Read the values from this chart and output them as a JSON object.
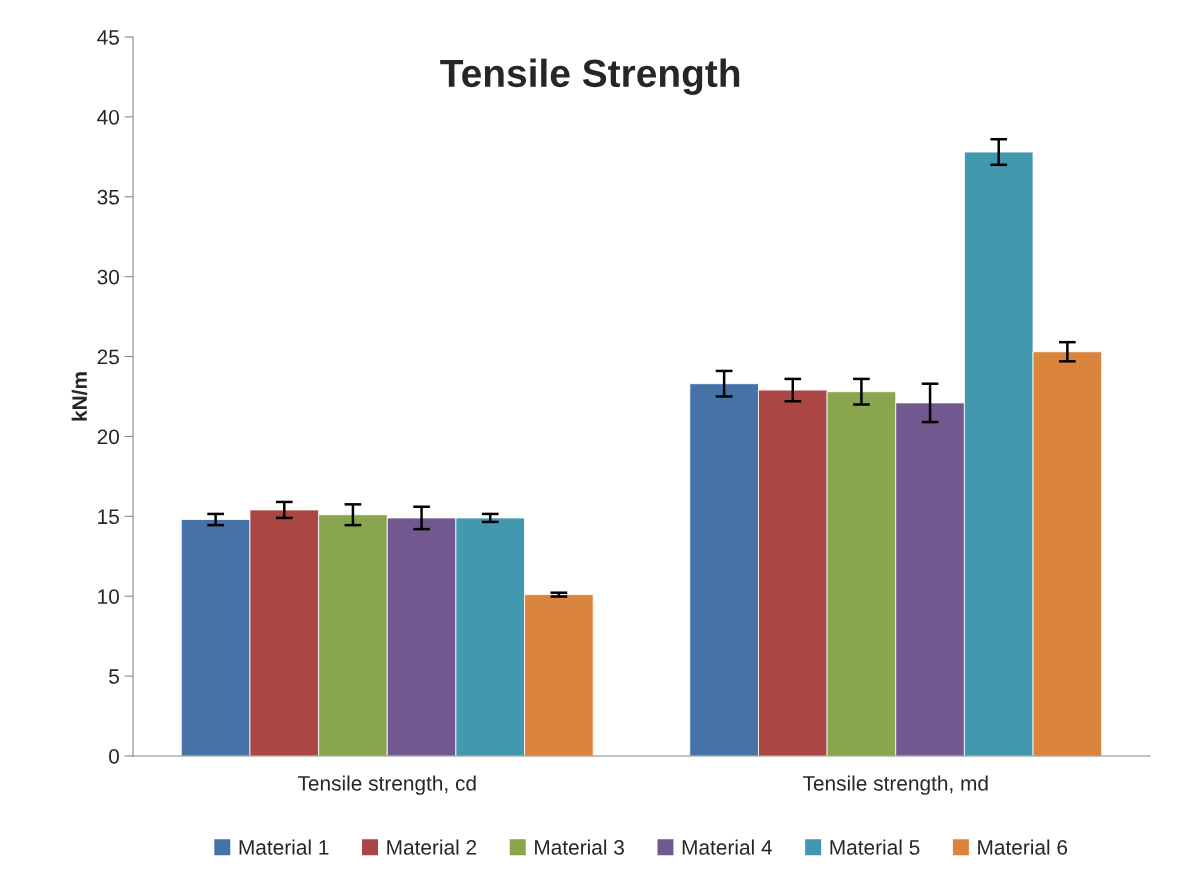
{
  "chart_data": {
    "type": "bar",
    "title": "Tensile Strength",
    "ylabel": "kN/m",
    "categories": [
      "Tensile strength, cd",
      "Tensile strength, md"
    ],
    "series": [
      {
        "name": "Material 1",
        "color": "#4572a7",
        "values": [
          14.8,
          23.3
        ],
        "errors": [
          0.35,
          0.8
        ]
      },
      {
        "name": "Material 2",
        "color": "#aa4643",
        "values": [
          15.4,
          22.9
        ],
        "errors": [
          0.5,
          0.7
        ]
      },
      {
        "name": "Material 3",
        "color": "#89a54e",
        "values": [
          15.1,
          22.8
        ],
        "errors": [
          0.65,
          0.8
        ]
      },
      {
        "name": "Material 4",
        "color": "#71588f",
        "values": [
          14.9,
          22.1
        ],
        "errors": [
          0.7,
          1.2
        ]
      },
      {
        "name": "Material 5",
        "color": "#4198af",
        "values": [
          14.9,
          37.8
        ],
        "errors": [
          0.25,
          0.8
        ]
      },
      {
        "name": "Material 6",
        "color": "#db843d",
        "values": [
          10.1,
          25.3
        ],
        "errors": [
          0.12,
          0.6
        ]
      }
    ],
    "ylim": [
      0,
      45
    ],
    "yticks": [
      0,
      5,
      10,
      15,
      20,
      25,
      30,
      35,
      40,
      45
    ],
    "grid": false,
    "legend": "bottom"
  }
}
